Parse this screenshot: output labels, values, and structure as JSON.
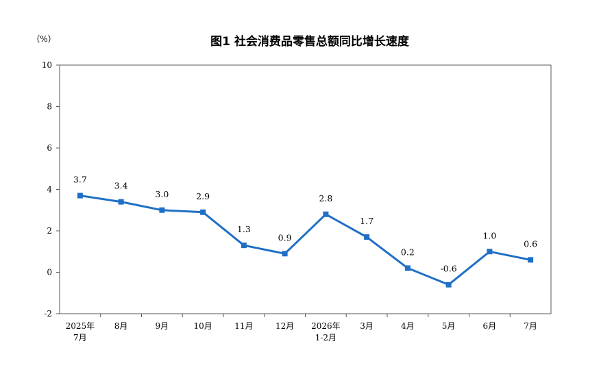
{
  "chart_data": {
    "type": "line",
    "title": "图1  社会消费品零售总额同比增长速度",
    "unit_label": "（%）",
    "categories": [
      [
        "2025年",
        "7月"
      ],
      [
        "8月"
      ],
      [
        "9月"
      ],
      [
        "10月"
      ],
      [
        "11月"
      ],
      [
        "12月"
      ],
      [
        "2026年",
        "1-2月"
      ],
      [
        "3月"
      ],
      [
        "4月"
      ],
      [
        "5月"
      ],
      [
        "6月"
      ],
      [
        "7月"
      ]
    ],
    "series": [
      {
        "values": [
          3.7,
          3.4,
          3.0,
          2.9,
          1.3,
          0.9,
          2.8,
          1.7,
          0.2,
          -0.6,
          1.0,
          0.6
        ],
        "data_labels": [
          "3.7",
          "3.4",
          "3.0",
          "2.9",
          "1.3",
          "0.9",
          "2.8",
          "1.7",
          "0.2",
          "-0.6",
          "1.0",
          "0.6"
        ]
      }
    ],
    "ylim": [
      -2,
      10
    ],
    "yticks": [
      -2,
      0,
      2,
      4,
      6,
      8,
      10
    ],
    "grid": false,
    "line_color": "#1f6fc5",
    "axis_color": "#595959"
  }
}
